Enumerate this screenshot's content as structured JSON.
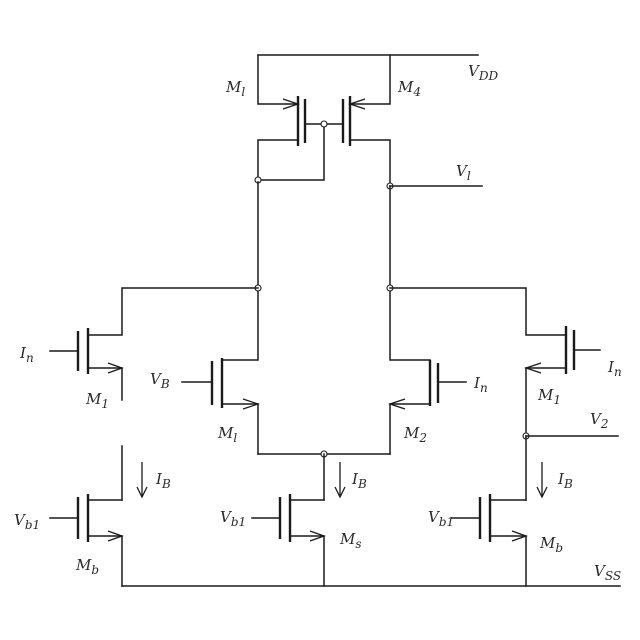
{
  "labels": {
    "m_top_left": "M",
    "m_top_left_sub": "l",
    "m_top_right": "M",
    "m_top_right_sub": "4",
    "vdd": "V",
    "vdd_sub": "DD",
    "out_a": "V",
    "out_a_sub": "l",
    "in_left_outer": "I",
    "in_left_outer_sub": "n",
    "m_left_outer": "M",
    "m_left_outer_sub": "1",
    "in_left_inner": "V",
    "in_left_inner_sub": "B",
    "m_left_inner": "M",
    "m_left_inner_sub": "l",
    "in_right_inner": "I",
    "in_right_inner_sub": "n",
    "m_right_inner": "M",
    "m_right_inner_sub": "2",
    "in_right_outer": "I",
    "in_right_outer_sub": "n",
    "m_right_outer": "M",
    "m_right_outer_sub": "1",
    "out_b": "V",
    "out_b_sub": "2",
    "cur_left": "I",
    "cur_left_sub": "B",
    "cur_mid": "I",
    "cur_mid_sub": "B",
    "cur_right": "I",
    "cur_right_sub": "B",
    "bias_left": "V",
    "bias_left_sub": "b1",
    "bias_mid": "V",
    "bias_mid_sub": "b1",
    "bias_right": "V",
    "bias_right_sub": "b1",
    "m_bot_left": "M",
    "m_bot_left_sub": "b",
    "m_bot_mid": "M",
    "m_bot_mid_sub": "s",
    "m_bot_right": "M",
    "m_bot_right_sub": "b",
    "vss": "V",
    "vss_sub": "SS"
  }
}
